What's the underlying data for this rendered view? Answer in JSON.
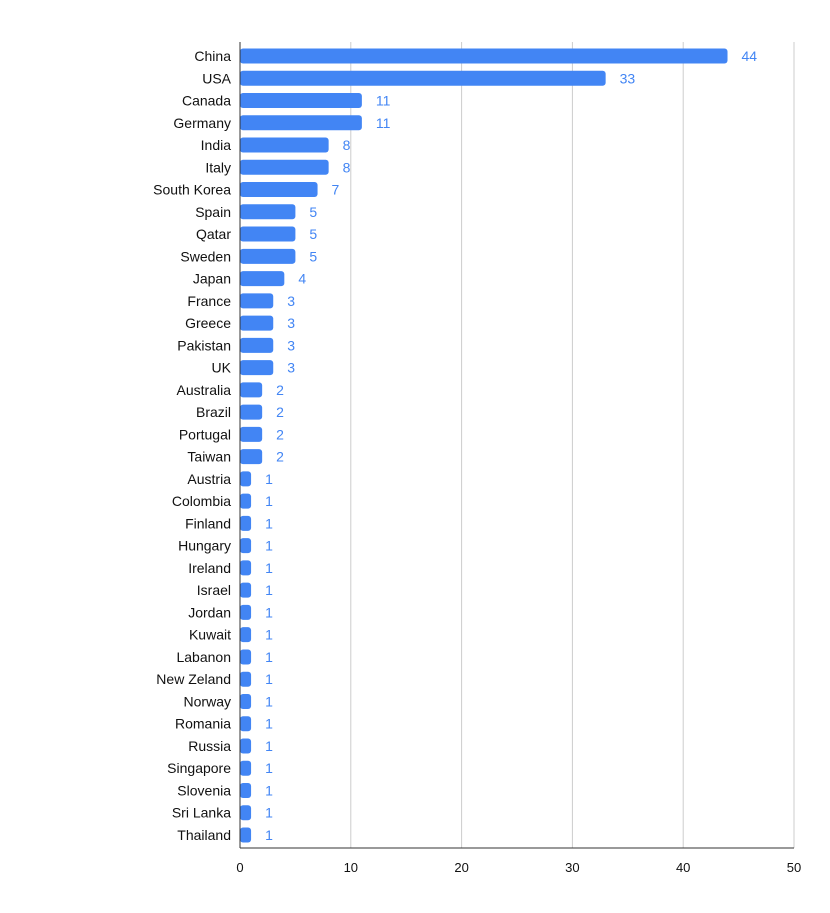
{
  "chart_data": {
    "type": "bar",
    "orientation": "horizontal",
    "title": "",
    "xlabel": "",
    "ylabel": "",
    "xlim": [
      0,
      50
    ],
    "x_ticks": [
      0,
      10,
      20,
      30,
      40,
      50
    ],
    "grid": "vertical",
    "bar_color": "#4285F4",
    "label_color": "#4285F4",
    "categories": [
      "China",
      "USA",
      "Canada",
      "Germany",
      "India",
      "Italy",
      "South Korea",
      "Spain",
      "Qatar",
      "Sweden",
      "Japan",
      "France",
      "Greece",
      "Pakistan",
      "UK",
      "Australia",
      "Brazil",
      "Portugal",
      "Taiwan",
      "Austria",
      "Colombia",
      "Finland",
      "Hungary",
      "Ireland",
      "Israel",
      "Jordan",
      "Kuwait",
      "Labanon",
      "New Zeland",
      "Norway",
      "Romania",
      "Russia",
      "Singapore",
      "Slovenia",
      "Sri Lanka",
      "Thailand"
    ],
    "values": [
      44,
      33,
      11,
      11,
      8,
      8,
      7,
      5,
      5,
      5,
      4,
      3,
      3,
      3,
      3,
      2,
      2,
      2,
      2,
      1,
      1,
      1,
      1,
      1,
      1,
      1,
      1,
      1,
      1,
      1,
      1,
      1,
      1,
      1,
      1,
      1
    ]
  }
}
